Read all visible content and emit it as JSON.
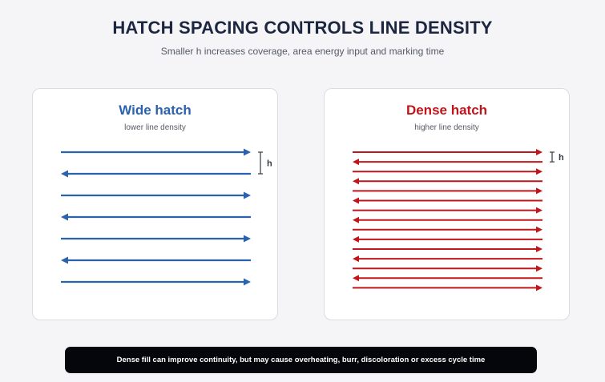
{
  "header": {
    "title": "HATCH SPACING CONTROLS LINE DENSITY",
    "subtitle": "Smaller h increases coverage, area energy input and marking time"
  },
  "panels": [
    {
      "title": "Wide hatch",
      "subtitle": "lower line density",
      "line_count": 7,
      "color": "#2b62ad",
      "first_direction": "right",
      "spacing_label": "h"
    },
    {
      "title": "Dense hatch",
      "subtitle": "higher line density",
      "line_count": 15,
      "color": "#c0151b",
      "first_direction": "right",
      "spacing_label": "h"
    }
  ],
  "footer": {
    "note": "Dense fill can improve continuity, but may cause overheating, burr, discoloration or excess cycle time"
  }
}
